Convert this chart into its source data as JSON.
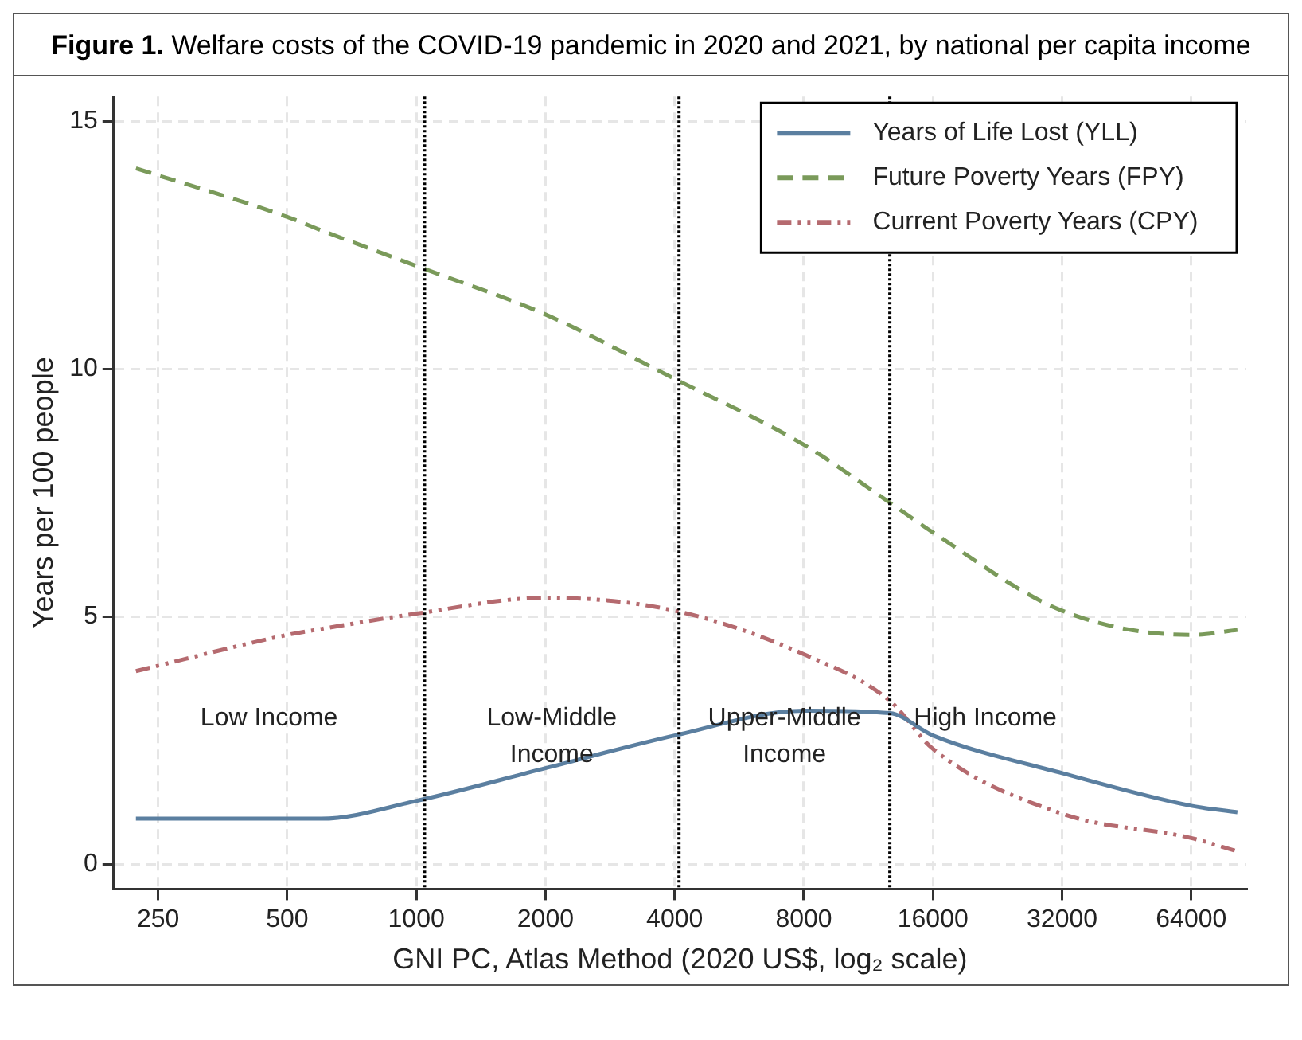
{
  "chart_data": {
    "type": "line",
    "title": "Figure 1. Welfare costs of the COVID-19 pandemic in 2020 and 2021, by national per capita income",
    "xlabel": "GNI PC, Atlas Method (2020 US$, log₂ scale)",
    "ylabel": "Years per 100 people",
    "x": [
      222,
      500,
      600,
      1000,
      2000,
      4000,
      8000,
      12695,
      16000,
      32000,
      64000,
      82000
    ],
    "series": [
      {
        "name": "Years of Life Lost (YLL)",
        "color": "#5b7fa0",
        "line_style": "solid",
        "values": [
          0.92,
          0.92,
          0.92,
          1.28,
          1.94,
          2.6,
          3.1,
          3.05,
          2.6,
          1.84,
          1.18,
          1.05
        ]
      },
      {
        "name": "Future Poverty Years (FPY)",
        "color": "#7a9a5a",
        "line_style": "dashed",
        "values": [
          14.05,
          13.07,
          12.8,
          12.08,
          11.1,
          9.8,
          8.47,
          7.3,
          6.7,
          5.12,
          4.63,
          4.73
        ]
      },
      {
        "name": "Current Poverty Years (CPY)",
        "color": "#b56a6f",
        "line_style": "dotted",
        "values": [
          3.9,
          4.63,
          4.75,
          5.06,
          5.38,
          5.12,
          4.24,
          3.3,
          2.33,
          1.02,
          0.53,
          0.26
        ]
      }
    ],
    "log": "x",
    "xlim": [
      197,
      86000
    ],
    "xticks": [
      250,
      500,
      1000,
      2000,
      4000,
      8000,
      16000,
      32000,
      64000
    ],
    "ylim": [
      -0.5,
      15.5
    ],
    "yticks": [
      0,
      5,
      10,
      15
    ],
    "grid": true,
    "legend": "top right",
    "ref_lines": [
      {
        "axis": "x",
        "value": 1045,
        "line_style": "dotted"
      },
      {
        "axis": "x",
        "value": 4095,
        "line_style": "dotted"
      },
      {
        "axis": "x",
        "value": 12695,
        "line_style": "dotted"
      }
    ],
    "annotations": [
      "Low Income",
      "Low-Middle\nIncome",
      "Upper-Middle\nIncome",
      "High Income"
    ]
  }
}
